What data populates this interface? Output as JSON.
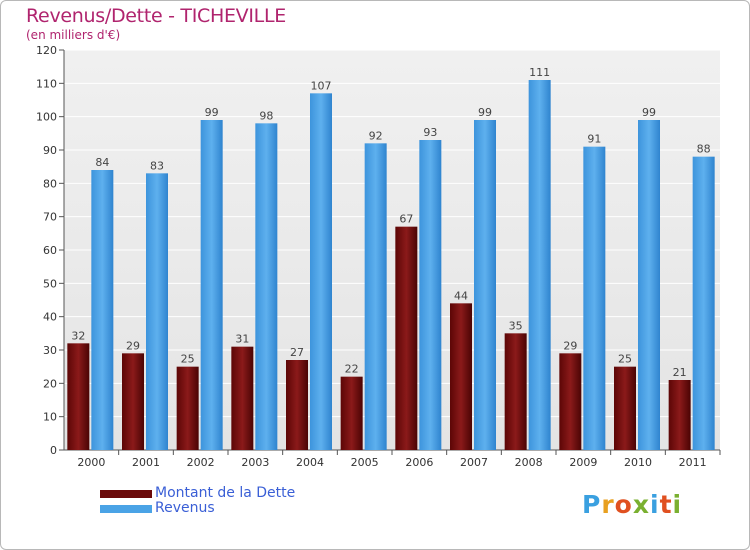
{
  "header": {
    "title": "Revenus/Dette - TICHEVILLE",
    "subtitle": "(en milliers d'€)"
  },
  "chart_data": {
    "type": "bar",
    "title": "Revenus/Dette - TICHEVILLE",
    "subtitle": "(en milliers d'€)",
    "xlabel": "",
    "ylabel": "",
    "ylim": [
      0,
      120
    ],
    "yticks": [
      0,
      10,
      20,
      30,
      40,
      50,
      60,
      70,
      80,
      90,
      100,
      110,
      120
    ],
    "grid": true,
    "legend_position": "bottom-left",
    "categories": [
      "2000",
      "2001",
      "2002",
      "2003",
      "2004",
      "2005",
      "2006",
      "2007",
      "2008",
      "2009",
      "2010",
      "2011"
    ],
    "series": [
      {
        "name": "Montant de la Dette",
        "color": "#8b1414",
        "values": [
          32,
          29,
          25,
          31,
          27,
          22,
          67,
          44,
          35,
          29,
          25,
          21
        ]
      },
      {
        "name": "Revenus",
        "color": "#4aa3e6",
        "values": [
          84,
          83,
          99,
          98,
          107,
          92,
          93,
          99,
          111,
          91,
          99,
          88
        ]
      }
    ]
  },
  "legend": {
    "items": [
      {
        "label": "Montant de la Dette",
        "color": "#6b0a0a"
      },
      {
        "label": "Revenus",
        "color": "#4aa3e6"
      }
    ]
  },
  "logo": {
    "text": "Proxiti"
  }
}
